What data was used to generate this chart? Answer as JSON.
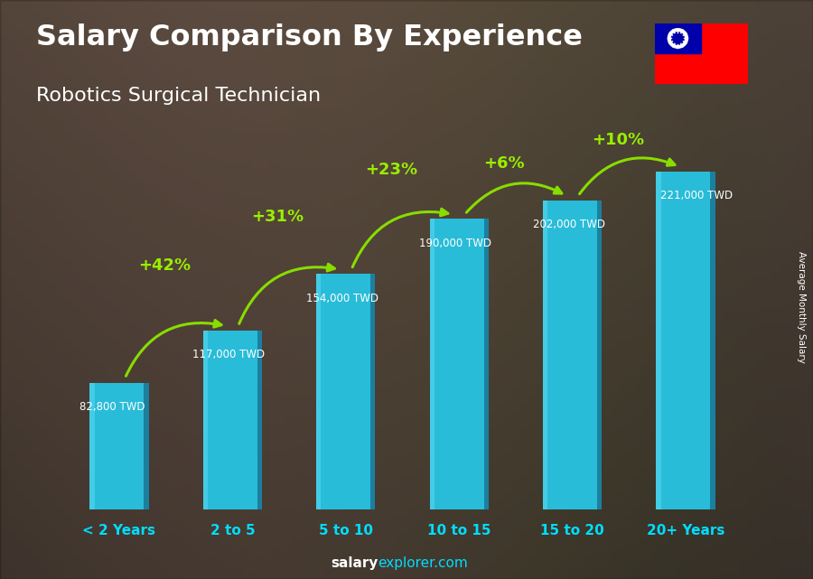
{
  "categories": [
    "< 2 Years",
    "2 to 5",
    "5 to 10",
    "10 to 15",
    "15 to 20",
    "20+ Years"
  ],
  "values": [
    82800,
    117000,
    154000,
    190000,
    202000,
    221000
  ],
  "salary_labels": [
    "82,800 TWD",
    "117,000 TWD",
    "154,000 TWD",
    "190,000 TWD",
    "202,000 TWD",
    "221,000 TWD"
  ],
  "pct_changes": [
    null,
    "+42%",
    "+31%",
    "+23%",
    "+6%",
    "+10%"
  ],
  "bar_face_color": "#29bcd8",
  "bar_side_color": "#1a7a99",
  "bar_top_color": "#55d8f0",
  "bar_highlight_color": "#4dcfea",
  "title_line1": "Salary Comparison By Experience",
  "title_line2": "Robotics Surgical Technician",
  "ylabel_right": "Average Monthly Salary",
  "footer_bold": "salary",
  "footer_rest": "explorer.com",
  "pct_color": "#99ee00",
  "xlabel_color": "#00ddff",
  "salary_label_color": "#ffffff",
  "ylim_max": 265000,
  "bar_width": 0.52,
  "bg_top": "#6b6b7b",
  "bg_bottom": "#3a3a4a",
  "arrow_color": "#88dd00"
}
